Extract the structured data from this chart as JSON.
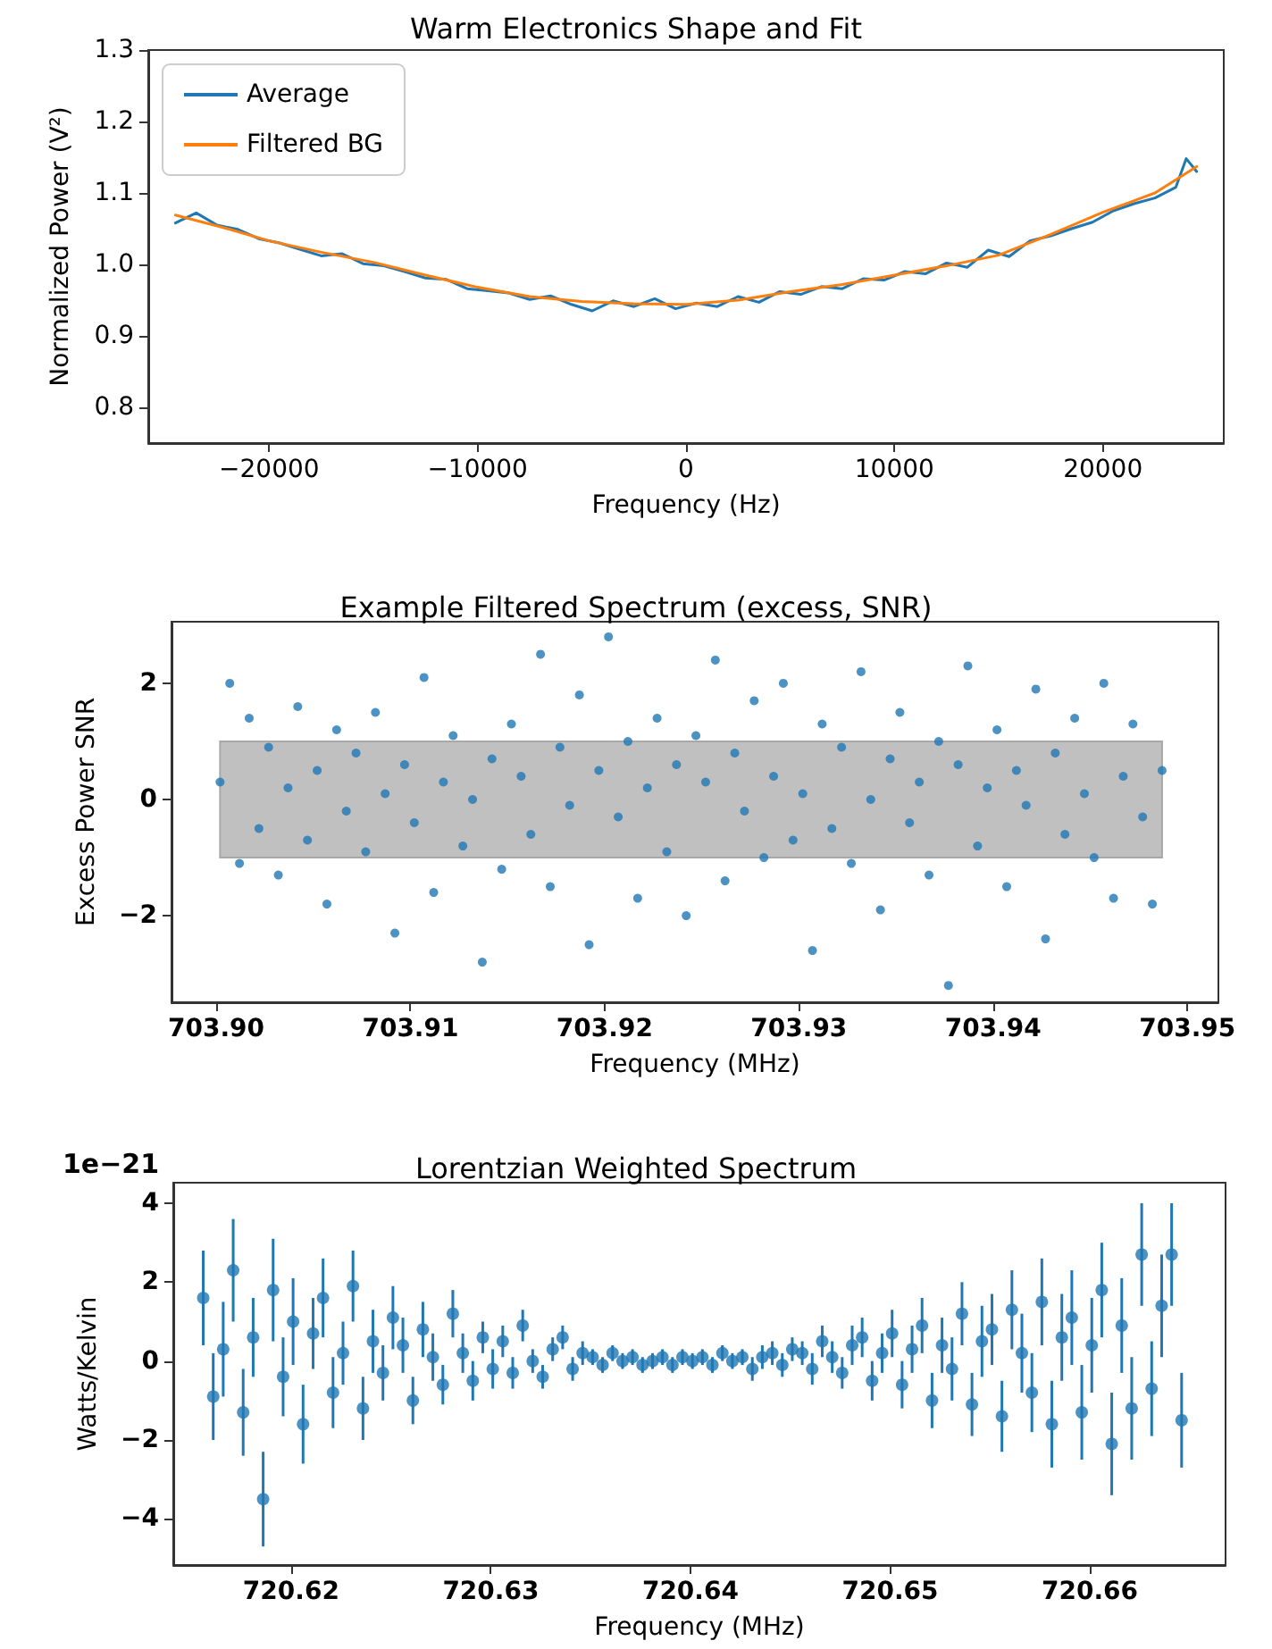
{
  "chart_data": [
    {
      "type": "line",
      "title": "Warm Electronics Shape and Fit",
      "xlabel": "Frequency (Hz)",
      "ylabel": "Normalized Power (V²)",
      "xlim": [
        -25800,
        25800
      ],
      "ylim": [
        0.75,
        1.3
      ],
      "xticks": [
        -20000,
        -10000,
        0,
        10000,
        20000
      ],
      "yticks": [
        0.8,
        0.9,
        {
          "value": 1,
          "label": "1.0"
        },
        1.1,
        1.2,
        1.3
      ],
      "legend": "top left",
      "marker": "none",
      "x": [
        -24500,
        -23500,
        -22500,
        -21500,
        -20500,
        -19500,
        -18500,
        -17500,
        -16500,
        -15500,
        -14500,
        -13500,
        -12500,
        -11500,
        -10500,
        -9500,
        -8500,
        -7500,
        -6500,
        -5500,
        -4500,
        -3500,
        -2500,
        -1500,
        -500,
        500,
        1500,
        2500,
        3500,
        4500,
        5500,
        6500,
        7500,
        8500,
        9500,
        10500,
        11500,
        12500,
        13500,
        14500,
        15500,
        16500,
        17500,
        18500,
        19500,
        20500,
        21500,
        22500,
        23500,
        24000,
        24500
      ],
      "series": [
        {
          "name": "Average",
          "color": "#1f77b4",
          "values": [
            1.058,
            1.072,
            1.055,
            1.049,
            1.036,
            1.03,
            1.021,
            1.012,
            1.015,
            1.001,
            0.998,
            0.99,
            0.981,
            0.979,
            0.966,
            0.963,
            0.96,
            0.951,
            0.956,
            0.944,
            0.935,
            0.949,
            0.941,
            0.952,
            0.938,
            0.946,
            0.941,
            0.955,
            0.947,
            0.962,
            0.958,
            0.969,
            0.966,
            0.98,
            0.978,
            0.99,
            0.987,
            1.002,
            0.996,
            1.02,
            1.011,
            1.033,
            1.04,
            1.05,
            1.059,
            1.075,
            1.085,
            1.093,
            1.108,
            1.148,
            1.13
          ]
        },
        {
          "name": "Filtered BG",
          "color": "#ff7f0e",
          "x": [
            -24500,
            -22000,
            -20000,
            -17500,
            -15000,
            -12500,
            -10000,
            -7500,
            -5000,
            -2500,
            0,
            2500,
            5000,
            7500,
            10000,
            12500,
            15000,
            17500,
            20000,
            22500,
            24500
          ],
          "values": [
            1.069,
            1.05,
            1.033,
            1.017,
            1.003,
            0.985,
            0.968,
            0.955,
            0.948,
            0.945,
            0.944,
            0.95,
            0.962,
            0.972,
            0.985,
            0.998,
            1.013,
            1.042,
            1.073,
            1.1,
            1.137
          ]
        }
      ]
    },
    {
      "type": "scatter",
      "title": "Example Filtered Spectrum (excess, SNR)",
      "xlabel": "Frequency (MHz)",
      "ylabel": "Excess Power SNR",
      "xlim": [
        703.8977,
        703.9516
      ],
      "ylim": [
        -3.49,
        3.06
      ],
      "xticks": [
        {
          "value": 703.9,
          "label": "703.90"
        },
        703.91,
        703.92,
        703.93,
        703.94,
        {
          "value": 703.95,
          "label": "703.95"
        }
      ],
      "yticks": [
        -2,
        0,
        2
      ],
      "marker": "circle",
      "bands": [
        {
          "axis": "y",
          "from": -1,
          "to": 1,
          "color": "#c0c0c0"
        }
      ],
      "x": [
        703.9002,
        703.9007,
        703.9012,
        703.9017,
        703.9022,
        703.9027,
        703.9032,
        703.9037,
        703.9042,
        703.9047,
        703.9052,
        703.9057,
        703.9062,
        703.9067,
        703.9072,
        703.9077,
        703.9082,
        703.9087,
        703.9092,
        703.9097,
        703.9102,
        703.9107,
        703.9112,
        703.9117,
        703.9122,
        703.9127,
        703.9132,
        703.9137,
        703.9142,
        703.9147,
        703.9152,
        703.9157,
        703.9162,
        703.9167,
        703.9172,
        703.9177,
        703.9182,
        703.9187,
        703.9192,
        703.9197,
        703.9202,
        703.9207,
        703.9212,
        703.9217,
        703.9222,
        703.9227,
        703.9232,
        703.9237,
        703.9242,
        703.9247,
        703.9252,
        703.9257,
        703.9262,
        703.9267,
        703.9272,
        703.9277,
        703.9282,
        703.9287,
        703.9292,
        703.9297,
        703.9302,
        703.9307,
        703.9312,
        703.9317,
        703.9322,
        703.9327,
        703.9332,
        703.9337,
        703.9342,
        703.9347,
        703.9352,
        703.9357,
        703.9362,
        703.9367,
        703.9372,
        703.9377,
        703.9382,
        703.9387,
        703.9392,
        703.9397,
        703.9402,
        703.9407,
        703.9412,
        703.9417,
        703.9422,
        703.9427,
        703.9432,
        703.9437,
        703.9442,
        703.9447,
        703.9452,
        703.9457,
        703.9462,
        703.9467,
        703.9472,
        703.9477,
        703.9482,
        703.9487
      ],
      "series": [
        {
          "color": "#1f77b4",
          "values": [
            0.3,
            2.0,
            -1.1,
            1.4,
            -0.5,
            0.9,
            -1.3,
            0.2,
            1.6,
            -0.7,
            0.5,
            -1.8,
            1.2,
            -0.2,
            0.8,
            -0.9,
            1.5,
            0.1,
            -2.3,
            0.6,
            -0.4,
            2.1,
            -1.6,
            0.3,
            1.1,
            -0.8,
            0.0,
            -2.8,
            0.7,
            -1.2,
            1.3,
            0.4,
            -0.6,
            2.5,
            -1.5,
            0.9,
            -0.1,
            1.8,
            -2.5,
            0.5,
            2.8,
            -0.3,
            1.0,
            -1.7,
            0.2,
            1.4,
            -0.9,
            0.6,
            -2.0,
            1.1,
            0.3,
            2.4,
            -1.4,
            0.8,
            -0.2,
            1.7,
            -1.0,
            0.4,
            2.0,
            -0.7,
            0.1,
            -2.6,
            1.3,
            -0.5,
            0.9,
            -1.1,
            2.2,
            0.0,
            -1.9,
            0.7,
            1.5,
            -0.4,
            0.3,
            -1.3,
            1.0,
            -3.2,
            0.6,
            2.3,
            -0.8,
            0.2,
            1.2,
            -1.5,
            0.5,
            -0.1,
            1.9,
            -2.4,
            0.8,
            -0.6,
            1.4,
            0.1,
            -1.0,
            2.0,
            -1.7,
            0.4,
            1.3,
            -0.3,
            -1.8,
            0.5
          ]
        }
      ]
    },
    {
      "type": "scatter",
      "title": "Lorentzian Weighted Spectrum",
      "xlabel": "Frequency (MHz)",
      "ylabel": "Watts/Kelvin",
      "xlim": [
        720.6141,
        720.6668
      ],
      "ylim": [
        -5.17,
        4.52
      ],
      "xticks": [
        720.62,
        720.63,
        720.64,
        720.65,
        720.66
      ],
      "yticks": [
        -4,
        -2,
        0,
        2,
        4
      ],
      "marker": "circle",
      "annotations": [
        "1e−21"
      ],
      "x": [
        720.6156,
        720.6161,
        720.6166,
        720.6171,
        720.6176,
        720.6181,
        720.6186,
        720.6191,
        720.6196,
        720.6201,
        720.6206,
        720.6211,
        720.6216,
        720.6221,
        720.6226,
        720.6231,
        720.6236,
        720.6241,
        720.6246,
        720.6251,
        720.6256,
        720.6261,
        720.6266,
        720.6271,
        720.6276,
        720.6281,
        720.6286,
        720.6291,
        720.6296,
        720.6301,
        720.6306,
        720.6311,
        720.6316,
        720.6321,
        720.6326,
        720.6331,
        720.6336,
        720.6341,
        720.6346,
        720.6351,
        720.6356,
        720.6361,
        720.6366,
        720.6371,
        720.6376,
        720.6381,
        720.6386,
        720.6391,
        720.6396,
        720.6401,
        720.6406,
        720.6411,
        720.6416,
        720.6421,
        720.6426,
        720.6431,
        720.6436,
        720.6441,
        720.6446,
        720.6451,
        720.6456,
        720.6461,
        720.6466,
        720.6471,
        720.6476,
        720.6481,
        720.6486,
        720.6491,
        720.6496,
        720.6501,
        720.6506,
        720.6511,
        720.6516,
        720.6521,
        720.6526,
        720.6531,
        720.6536,
        720.6541,
        720.6546,
        720.6551,
        720.6556,
        720.6561,
        720.6566,
        720.6571,
        720.6576,
        720.6581,
        720.6586,
        720.6591,
        720.6596,
        720.6601,
        720.6606,
        720.6611,
        720.6616,
        720.6621,
        720.6626,
        720.6631,
        720.6636,
        720.6641,
        720.6646
      ],
      "series": [
        {
          "color": "#1f77b4",
          "values": [
            1.6,
            -0.9,
            0.3,
            2.3,
            -1.3,
            0.6,
            -3.5,
            1.8,
            -0.4,
            1.0,
            -1.6,
            0.7,
            1.6,
            -0.8,
            0.2,
            1.9,
            -1.2,
            0.5,
            -0.3,
            1.1,
            0.4,
            -1.0,
            0.8,
            0.1,
            -0.6,
            1.2,
            0.2,
            -0.5,
            0.6,
            -0.2,
            0.5,
            -0.3,
            0.9,
            0.0,
            -0.4,
            0.3,
            0.6,
            -0.2,
            0.2,
            0.1,
            -0.1,
            0.2,
            0.0,
            0.1,
            -0.1,
            0.0,
            0.1,
            -0.1,
            0.1,
            0.0,
            0.1,
            -0.1,
            0.2,
            0.0,
            0.1,
            -0.2,
            0.1,
            0.2,
            -0.1,
            0.3,
            0.2,
            -0.2,
            0.5,
            0.1,
            -0.3,
            0.4,
            0.6,
            -0.5,
            0.2,
            0.7,
            -0.6,
            0.3,
            0.9,
            -1.0,
            0.4,
            -0.2,
            1.2,
            -1.1,
            0.5,
            0.8,
            -1.4,
            1.3,
            0.2,
            -0.8,
            1.5,
            -1.6,
            0.6,
            1.1,
            -1.3,
            0.4,
            1.8,
            -2.1,
            0.9,
            -1.2,
            2.7,
            -0.7,
            1.4,
            2.7,
            -1.5
          ],
          "errors": [
            1.2,
            1.1,
            1.2,
            1.3,
            1.1,
            1.0,
            1.2,
            1.3,
            1.0,
            1.1,
            1.0,
            0.9,
            1.0,
            0.9,
            0.8,
            0.9,
            0.8,
            0.8,
            0.7,
            0.8,
            0.7,
            0.6,
            0.7,
            0.6,
            0.5,
            0.6,
            0.5,
            0.5,
            0.4,
            0.5,
            0.4,
            0.4,
            0.4,
            0.3,
            0.3,
            0.3,
            0.3,
            0.3,
            0.3,
            0.2,
            0.2,
            0.2,
            0.2,
            0.2,
            0.2,
            0.2,
            0.2,
            0.2,
            0.2,
            0.2,
            0.2,
            0.2,
            0.2,
            0.2,
            0.2,
            0.3,
            0.3,
            0.3,
            0.3,
            0.3,
            0.3,
            0.4,
            0.4,
            0.4,
            0.4,
            0.5,
            0.5,
            0.5,
            0.5,
            0.6,
            0.6,
            0.6,
            0.7,
            0.7,
            0.7,
            0.8,
            0.8,
            0.8,
            0.9,
            0.9,
            0.9,
            1.0,
            1.0,
            1.0,
            1.1,
            1.1,
            1.1,
            1.2,
            1.2,
            1.2,
            1.2,
            1.3,
            1.2,
            1.3,
            1.3,
            1.2,
            1.3,
            1.3,
            1.2
          ]
        }
      ]
    }
  ]
}
